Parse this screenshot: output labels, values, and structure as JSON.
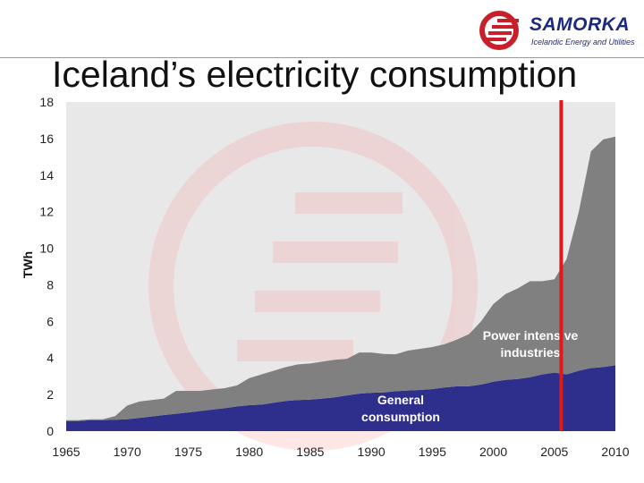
{
  "header": {
    "title": "Iceland’s electricity consumption",
    "logo_name": "SAMORKA",
    "logo_subtitle": "Icelandic Energy and Utilities"
  },
  "colors": {
    "general": "#2e2e8c",
    "industry": "#808080",
    "marker": "#e01a1a",
    "plot_bg": "#e8e8e8"
  },
  "chart_data": {
    "type": "area",
    "stacked": true,
    "title": "Iceland’s electricity consumption",
    "ylabel": "TWh",
    "xlabel": "",
    "xlim": [
      1965,
      2010
    ],
    "ylim": [
      0,
      18
    ],
    "x_ticks": [
      1965,
      1970,
      1975,
      1980,
      1985,
      1990,
      1995,
      2000,
      2005,
      2010
    ],
    "y_ticks": [
      0,
      2,
      4,
      6,
      8,
      10,
      12,
      14,
      16,
      18
    ],
    "grid": false,
    "x": [
      1965,
      1966,
      1967,
      1968,
      1969,
      1970,
      1971,
      1972,
      1973,
      1974,
      1975,
      1976,
      1977,
      1978,
      1979,
      1980,
      1981,
      1982,
      1983,
      1984,
      1985,
      1986,
      1987,
      1988,
      1989,
      1990,
      1991,
      1992,
      1993,
      1994,
      1995,
      1996,
      1997,
      1998,
      1999,
      2000,
      2001,
      2002,
      2003,
      2004,
      2005,
      2006,
      2007,
      2008,
      2009,
      2010
    ],
    "series": [
      {
        "name": "General consumption",
        "values": [
          0.55,
          0.55,
          0.6,
          0.6,
          0.62,
          0.65,
          0.72,
          0.8,
          0.88,
          0.95,
          1.02,
          1.1,
          1.18,
          1.25,
          1.35,
          1.42,
          1.45,
          1.55,
          1.65,
          1.7,
          1.72,
          1.78,
          1.85,
          1.95,
          2.05,
          2.1,
          2.12,
          2.18,
          2.22,
          2.25,
          2.3,
          2.38,
          2.45,
          2.45,
          2.55,
          2.7,
          2.8,
          2.85,
          2.95,
          3.1,
          3.2,
          3.1,
          3.3,
          3.45,
          3.5,
          3.6
        ]
      },
      {
        "name": "Power intensive industries",
        "values": [
          0.05,
          0.05,
          0.05,
          0.05,
          0.2,
          0.75,
          0.9,
          0.9,
          0.9,
          1.25,
          1.18,
          1.1,
          1.1,
          1.1,
          1.15,
          1.48,
          1.65,
          1.75,
          1.85,
          1.95,
          1.98,
          2.02,
          2.05,
          2.0,
          2.25,
          2.2,
          2.1,
          2.02,
          2.18,
          2.25,
          2.3,
          2.37,
          2.55,
          2.85,
          3.45,
          4.25,
          4.7,
          4.95,
          5.25,
          5.1,
          5.1,
          6.3,
          8.7,
          11.85,
          12.45,
          12.5
        ]
      }
    ],
    "area_labels": [
      {
        "series": "General consumption",
        "text": [
          "General",
          "consumption"
        ]
      },
      {
        "series": "Power intensive industries",
        "text": [
          "Power intens ve",
          "industries"
        ]
      }
    ],
    "marker_line": {
      "x": 2006
    }
  }
}
